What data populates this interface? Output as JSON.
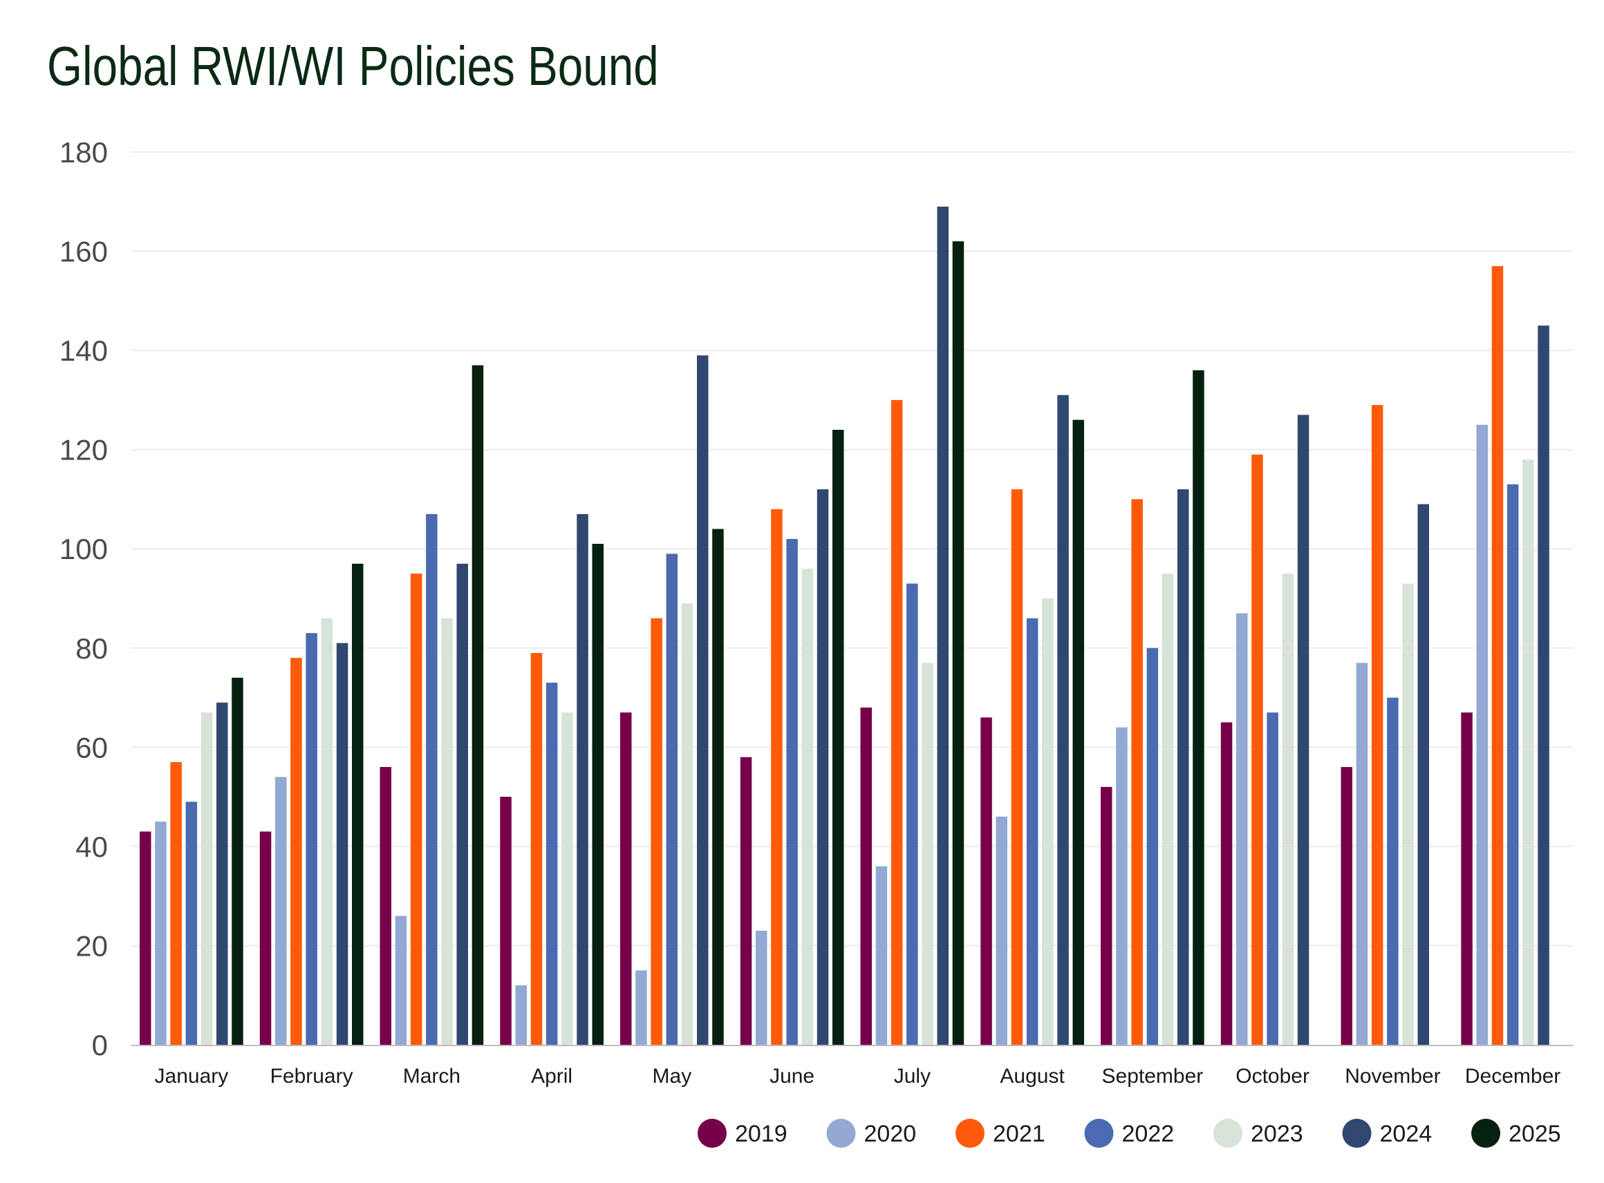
{
  "chart_data": {
    "type": "bar",
    "title": "Global RWI/WI Policies Bound",
    "xlabel": "",
    "ylabel": "",
    "ylim": [
      0,
      180
    ],
    "yticks": [
      "0",
      "20",
      "40",
      "60",
      "80",
      "100",
      "120",
      "140",
      "160",
      "180"
    ],
    "grid": true,
    "legend_position": "bottom-right",
    "categories": [
      "January",
      "February",
      "March",
      "April",
      "May",
      "June",
      "July",
      "August",
      "September",
      "October",
      "November",
      "December"
    ],
    "series": [
      {
        "name": "2019",
        "color": "#76004a",
        "values": [
          43,
          43,
          56,
          50,
          67,
          58,
          68,
          66,
          52,
          65,
          56,
          67
        ]
      },
      {
        "name": "2020",
        "color": "#93a8d2",
        "values": [
          45,
          54,
          26,
          12,
          15,
          23,
          36,
          46,
          64,
          87,
          77,
          125
        ]
      },
      {
        "name": "2021",
        "color": "#ff5a0a",
        "values": [
          57,
          78,
          95,
          79,
          86,
          108,
          130,
          112,
          110,
          119,
          129,
          157
        ]
      },
      {
        "name": "2022",
        "color": "#4a6bb0",
        "values": [
          49,
          83,
          107,
          73,
          99,
          102,
          93,
          86,
          80,
          67,
          70,
          113
        ]
      },
      {
        "name": "2023",
        "color": "#d8e3d8",
        "values": [
          67,
          86,
          86,
          67,
          89,
          96,
          77,
          90,
          95,
          95,
          93,
          118
        ]
      },
      {
        "name": "2024",
        "color": "#30476f",
        "values": [
          69,
          81,
          97,
          107,
          139,
          112,
          169,
          131,
          112,
          127,
          109,
          145
        ]
      },
      {
        "name": "2025",
        "color": "#06210f",
        "values": [
          74,
          97,
          137,
          101,
          104,
          124,
          162,
          126,
          136,
          null,
          null,
          null
        ]
      }
    ]
  }
}
